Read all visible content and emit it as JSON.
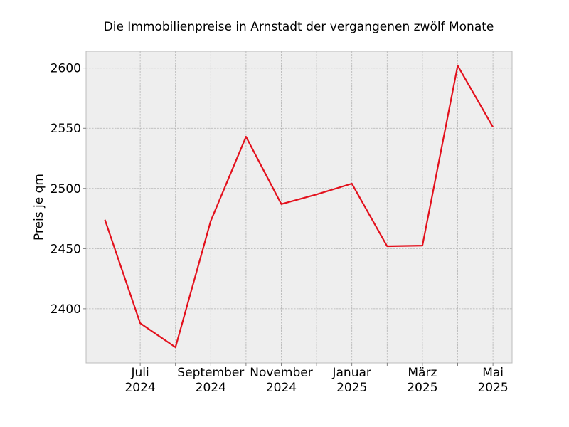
{
  "chart_data": {
    "type": "line",
    "title": "Die Immobilienpreise in Arnstadt der vergangenen zwölf Monate",
    "xlabel": "",
    "ylabel": "Preis je qm",
    "x": [
      "2024-06",
      "2024-07",
      "2024-08",
      "2024-09",
      "2024-10",
      "2024-11",
      "2024-12",
      "2025-01",
      "2025-02",
      "2025-03",
      "2025-04",
      "2025-05"
    ],
    "series": [
      {
        "values": [
          2474,
          2388,
          2368,
          2473,
          2543,
          2487,
          2495,
          2504,
          2452,
          2452.5,
          2602,
          2551
        ],
        "color": "#e3101c"
      }
    ],
    "ylim": [
      2355,
      2614
    ],
    "yticks": [
      2400,
      2450,
      2500,
      2550,
      2600
    ],
    "xtick_labels": [
      {
        "x": "2024-07",
        "line1": "Juli",
        "line2": "2024"
      },
      {
        "x": "2024-09",
        "line1": "September",
        "line2": "2024"
      },
      {
        "x": "2024-11",
        "line1": "November",
        "line2": "2024"
      },
      {
        "x": "2025-01",
        "line1": "Januar",
        "line2": "2025"
      },
      {
        "x": "2025-03",
        "line1": "März",
        "line2": "2025"
      },
      {
        "x": "2025-05",
        "line1": "Mai",
        "line2": "2025"
      }
    ],
    "grid": true,
    "background": "#eeeeee"
  }
}
